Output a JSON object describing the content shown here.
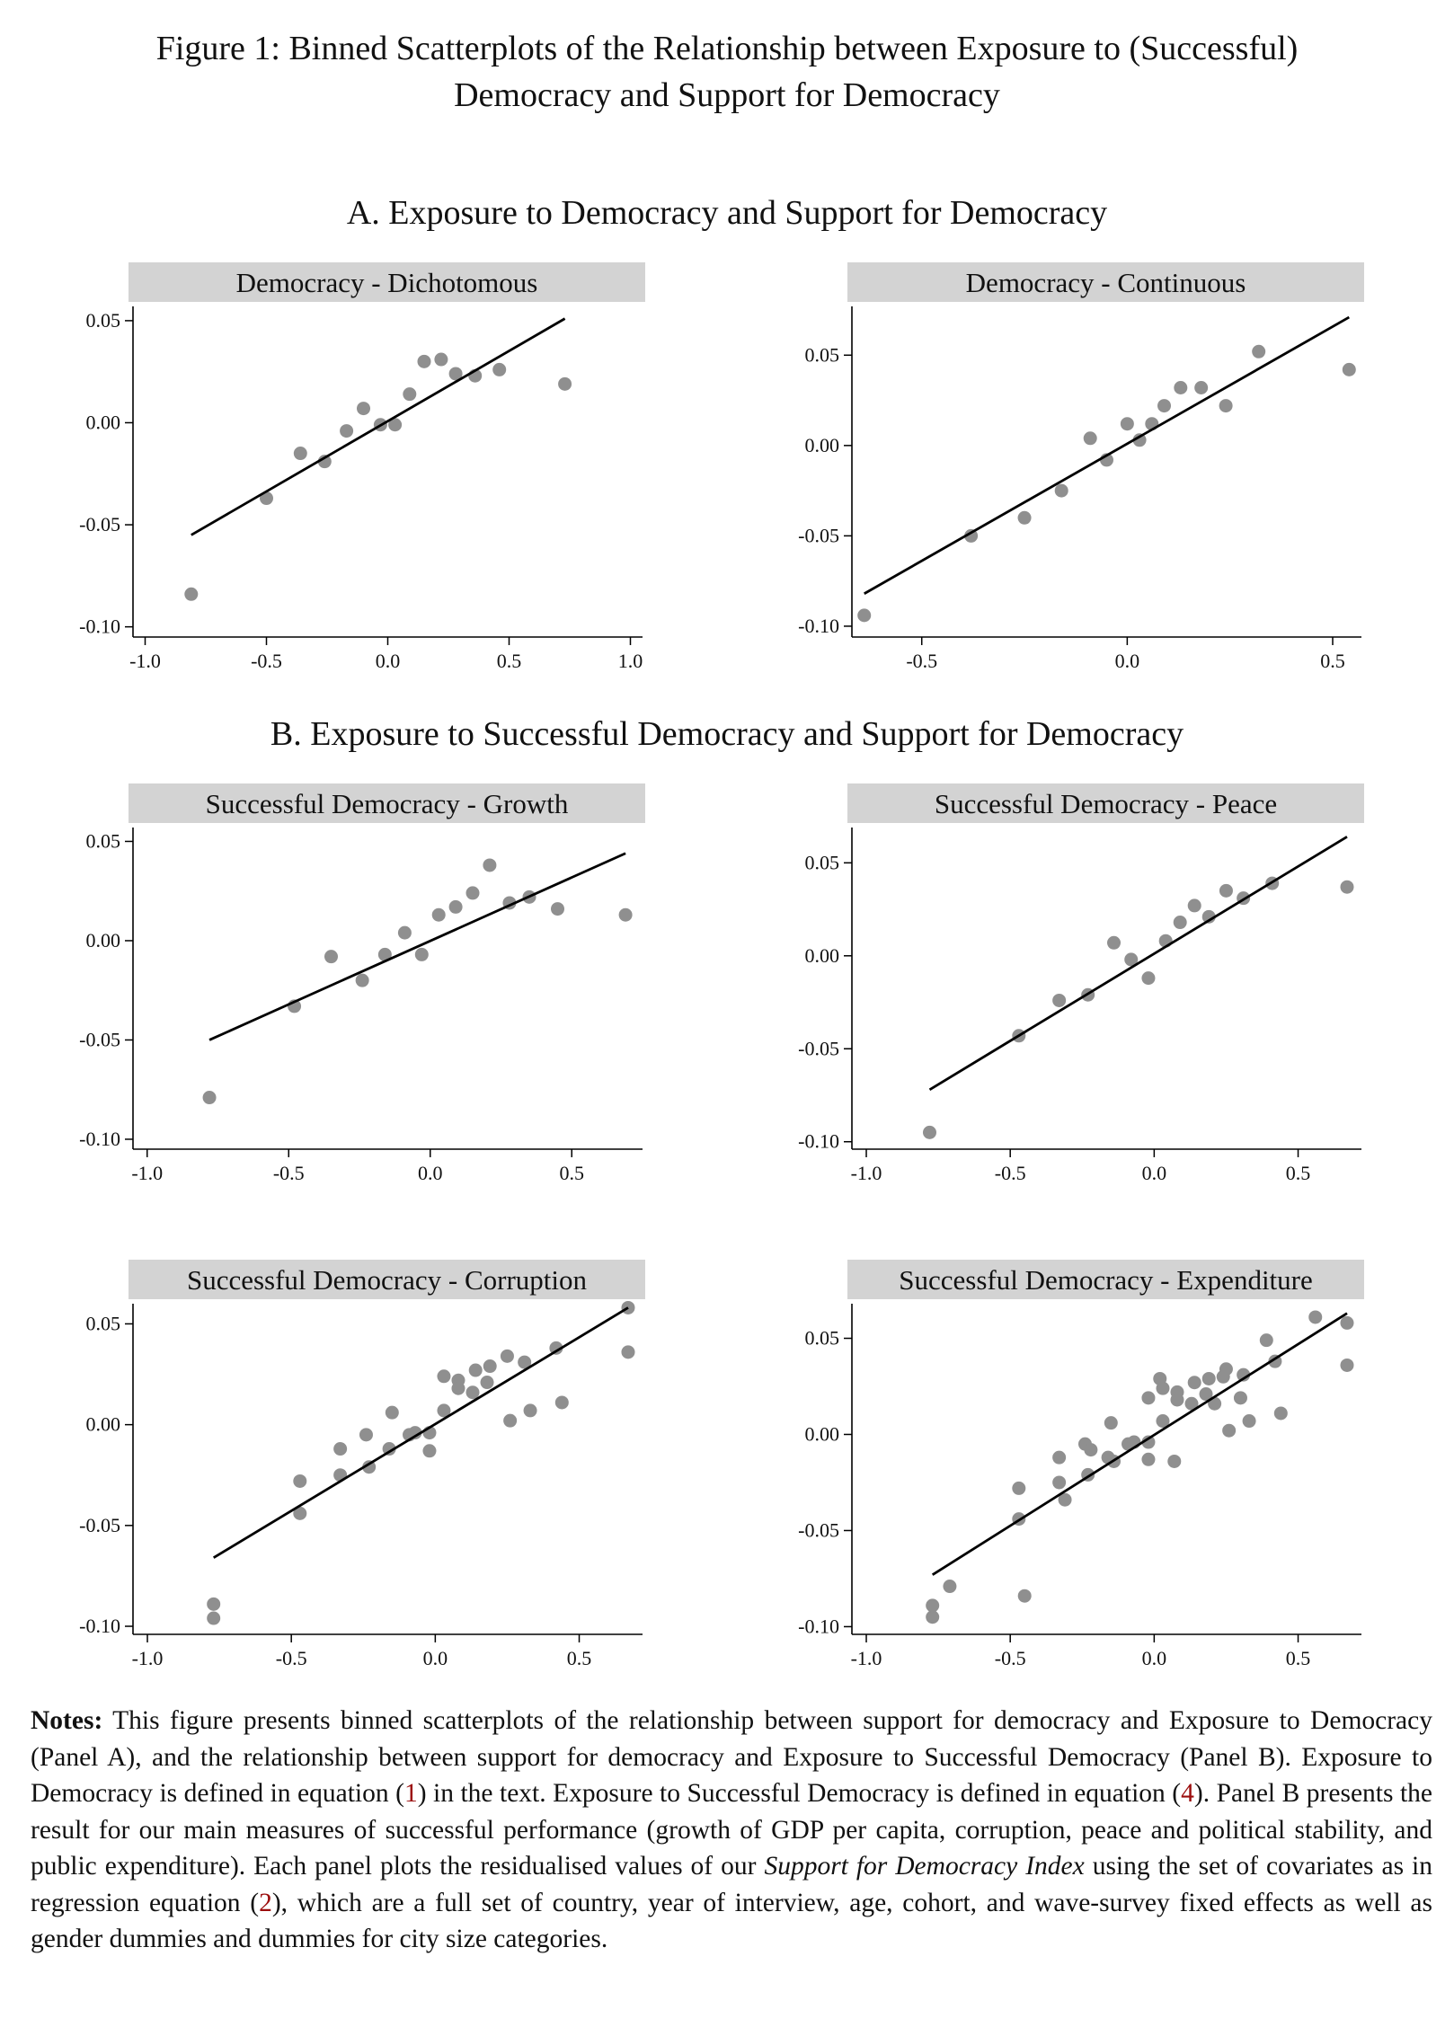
{
  "figure_title": {
    "line1": "Figure 1: Binned Scatterplots of the Relationship between Exposure to (Successful)",
    "line2": "Democracy and Support for Democracy"
  },
  "panel_a_heading": "A. Exposure to Democracy and Support for Democracy",
  "panel_b_heading": "B. Exposure to Successful Democracy and Support for Democracy",
  "colors": {
    "points": "#8f8f8f",
    "line": "#000000",
    "strip_bg": "#d3d3d3",
    "reference_link": "#9b0d0d"
  },
  "chart_data": [
    {
      "type": "scatter",
      "title": "Democracy - Dichotomous",
      "xlim": [
        -1.05,
        1.05
      ],
      "ylim": [
        -0.105,
        0.057
      ],
      "xticks": [
        -1.0,
        -0.5,
        0.0,
        0.5,
        1.0
      ],
      "xtick_labels": [
        "-1.0",
        "-0.5",
        "0.0",
        "0.5",
        "1.0"
      ],
      "yticks": [
        -0.1,
        -0.05,
        0.0,
        0.05
      ],
      "ytick_labels": [
        "-0.10",
        "-0.05",
        "0.00",
        "0.05"
      ],
      "points": [
        [
          -0.81,
          -0.084
        ],
        [
          -0.5,
          -0.037
        ],
        [
          -0.36,
          -0.015
        ],
        [
          -0.26,
          -0.019
        ],
        [
          -0.17,
          -0.004
        ],
        [
          -0.1,
          0.007
        ],
        [
          -0.03,
          -0.001
        ],
        [
          0.03,
          -0.001
        ],
        [
          0.09,
          0.014
        ],
        [
          0.15,
          0.03
        ],
        [
          0.22,
          0.031
        ],
        [
          0.28,
          0.024
        ],
        [
          0.36,
          0.023
        ],
        [
          0.46,
          0.026
        ],
        [
          0.73,
          0.019
        ]
      ],
      "fit_line": [
        [
          -0.81,
          -0.055
        ],
        [
          0.73,
          0.051
        ]
      ]
    },
    {
      "type": "scatter",
      "title": "Democracy - Continuous",
      "xlim": [
        -0.67,
        0.57
      ],
      "ylim": [
        -0.106,
        0.077
      ],
      "xticks": [
        -0.5,
        0.0,
        0.5
      ],
      "xtick_labels": [
        "-0.5",
        "0.0",
        "0.5"
      ],
      "yticks": [
        -0.1,
        -0.05,
        0.0,
        0.05
      ],
      "ytick_labels": [
        "-0.10",
        "-0.05",
        "0.00",
        "0.05"
      ],
      "points": [
        [
          -0.64,
          -0.094
        ],
        [
          -0.38,
          -0.05
        ],
        [
          -0.25,
          -0.04
        ],
        [
          -0.16,
          -0.025
        ],
        [
          -0.09,
          0.004
        ],
        [
          -0.05,
          -0.008
        ],
        [
          0.0,
          0.012
        ],
        [
          0.03,
          0.003
        ],
        [
          0.06,
          0.012
        ],
        [
          0.09,
          0.022
        ],
        [
          0.13,
          0.032
        ],
        [
          0.18,
          0.032
        ],
        [
          0.24,
          0.022
        ],
        [
          0.32,
          0.052
        ],
        [
          0.54,
          0.042
        ]
      ],
      "fit_line": [
        [
          -0.64,
          -0.082
        ],
        [
          0.54,
          0.071
        ]
      ]
    },
    {
      "type": "scatter",
      "title": "Successful Democracy - Growth",
      "xlim": [
        -1.05,
        0.75
      ],
      "ylim": [
        -0.105,
        0.057
      ],
      "xticks": [
        -1.0,
        -0.5,
        0.0,
        0.5
      ],
      "xtick_labels": [
        "-1.0",
        "-0.5",
        "0.0",
        "0.5"
      ],
      "yticks": [
        -0.1,
        -0.05,
        0.0,
        0.05
      ],
      "ytick_labels": [
        "-0.10",
        "-0.05",
        "0.00",
        "0.05"
      ],
      "points": [
        [
          -0.78,
          -0.079
        ],
        [
          -0.48,
          -0.033
        ],
        [
          -0.35,
          -0.008
        ],
        [
          -0.24,
          -0.02
        ],
        [
          -0.16,
          -0.007
        ],
        [
          -0.09,
          0.004
        ],
        [
          -0.03,
          -0.007
        ],
        [
          0.03,
          0.013
        ],
        [
          0.09,
          0.017
        ],
        [
          0.15,
          0.024
        ],
        [
          0.21,
          0.038
        ],
        [
          0.28,
          0.019
        ],
        [
          0.35,
          0.022
        ],
        [
          0.45,
          0.016
        ],
        [
          0.69,
          0.013
        ]
      ],
      "fit_line": [
        [
          -0.78,
          -0.05
        ],
        [
          0.69,
          0.044
        ]
      ]
    },
    {
      "type": "scatter",
      "title": "Successful Democracy - Peace",
      "xlim": [
        -1.05,
        0.72
      ],
      "ylim": [
        -0.104,
        0.069
      ],
      "xticks": [
        -1.0,
        -0.5,
        0.0,
        0.5
      ],
      "xtick_labels": [
        "-1.0",
        "-0.5",
        "0.0",
        "0.5"
      ],
      "yticks": [
        -0.1,
        -0.05,
        0.0,
        0.05
      ],
      "ytick_labels": [
        "-0.10",
        "-0.05",
        "0.00",
        "0.05"
      ],
      "points": [
        [
          -0.78,
          -0.095
        ],
        [
          -0.47,
          -0.043
        ],
        [
          -0.33,
          -0.024
        ],
        [
          -0.23,
          -0.021
        ],
        [
          -0.14,
          0.007
        ],
        [
          -0.08,
          -0.002
        ],
        [
          -0.02,
          -0.012
        ],
        [
          0.04,
          0.008
        ],
        [
          0.09,
          0.018
        ],
        [
          0.14,
          0.027
        ],
        [
          0.19,
          0.021
        ],
        [
          0.25,
          0.035
        ],
        [
          0.31,
          0.031
        ],
        [
          0.41,
          0.039
        ],
        [
          0.67,
          0.037
        ]
      ],
      "fit_line": [
        [
          -0.78,
          -0.072
        ],
        [
          0.67,
          0.064
        ]
      ]
    },
    {
      "type": "scatter",
      "title": "Successful Democracy - Corruption",
      "xlim": [
        -1.05,
        0.72
      ],
      "ylim": [
        -0.104,
        0.06
      ],
      "xticks": [
        -1.0,
        -0.5,
        0.0,
        0.5
      ],
      "xtick_labels": [
        "-1.0",
        "-0.5",
        "0.0",
        "0.5"
      ],
      "yticks": [
        -0.1,
        -0.05,
        0.0,
        0.05
      ],
      "ytick_labels": [
        "-0.10",
        "-0.05",
        "0.00",
        "0.05"
      ],
      "points": [
        [
          -0.77,
          -0.096
        ],
        [
          -0.77,
          -0.089
        ],
        [
          -0.47,
          -0.044
        ],
        [
          -0.47,
          -0.028
        ],
        [
          -0.33,
          -0.025
        ],
        [
          -0.33,
          -0.012
        ],
        [
          -0.24,
          -0.005
        ],
        [
          -0.23,
          -0.021
        ],
        [
          -0.16,
          -0.012
        ],
        [
          -0.15,
          0.006
        ],
        [
          -0.09,
          -0.005
        ],
        [
          -0.07,
          -0.004
        ],
        [
          -0.02,
          -0.004
        ],
        [
          -0.02,
          -0.013
        ],
        [
          0.03,
          0.007
        ],
        [
          0.03,
          0.024
        ],
        [
          0.08,
          0.022
        ],
        [
          0.08,
          0.018
        ],
        [
          0.13,
          0.016
        ],
        [
          0.14,
          0.027
        ],
        [
          0.18,
          0.021
        ],
        [
          0.19,
          0.029
        ],
        [
          0.25,
          0.034
        ],
        [
          0.26,
          0.002
        ],
        [
          0.31,
          0.031
        ],
        [
          0.33,
          0.007
        ],
        [
          0.42,
          0.038
        ],
        [
          0.44,
          0.011
        ],
        [
          0.67,
          0.058
        ],
        [
          0.67,
          0.036
        ]
      ],
      "fit_line": [
        [
          -0.77,
          -0.066
        ],
        [
          0.67,
          0.058
        ]
      ]
    },
    {
      "type": "scatter",
      "title": "Successful Democracy - Expenditure",
      "xlim": [
        -1.05,
        0.72
      ],
      "ylim": [
        -0.104,
        0.068
      ],
      "xticks": [
        -1.0,
        -0.5,
        0.0,
        0.5
      ],
      "xtick_labels": [
        "-1.0",
        "-0.5",
        "0.0",
        "0.5"
      ],
      "yticks": [
        -0.1,
        -0.05,
        0.0,
        0.05
      ],
      "ytick_labels": [
        "-0.10",
        "-0.05",
        "0.00",
        "0.05"
      ],
      "points": [
        [
          -0.77,
          -0.095
        ],
        [
          -0.77,
          -0.089
        ],
        [
          -0.71,
          -0.079
        ],
        [
          -0.47,
          -0.044
        ],
        [
          -0.47,
          -0.028
        ],
        [
          -0.45,
          -0.084
        ],
        [
          -0.33,
          -0.025
        ],
        [
          -0.33,
          -0.012
        ],
        [
          -0.31,
          -0.034
        ],
        [
          -0.24,
          -0.005
        ],
        [
          -0.23,
          -0.021
        ],
        [
          -0.22,
          -0.008
        ],
        [
          -0.16,
          -0.012
        ],
        [
          -0.15,
          0.006
        ],
        [
          -0.14,
          -0.014
        ],
        [
          -0.09,
          -0.005
        ],
        [
          -0.07,
          -0.004
        ],
        [
          -0.02,
          -0.004
        ],
        [
          -0.02,
          -0.013
        ],
        [
          -0.02,
          0.019
        ],
        [
          0.03,
          0.007
        ],
        [
          0.02,
          0.029
        ],
        [
          0.03,
          0.024
        ],
        [
          0.07,
          -0.014
        ],
        [
          0.08,
          0.022
        ],
        [
          0.08,
          0.018
        ],
        [
          0.13,
          0.016
        ],
        [
          0.14,
          0.027
        ],
        [
          0.18,
          0.021
        ],
        [
          0.19,
          0.029
        ],
        [
          0.21,
          0.016
        ],
        [
          0.25,
          0.034
        ],
        [
          0.24,
          0.03
        ],
        [
          0.26,
          0.002
        ],
        [
          0.31,
          0.031
        ],
        [
          0.3,
          0.019
        ],
        [
          0.33,
          0.007
        ],
        [
          0.39,
          0.049
        ],
        [
          0.42,
          0.038
        ],
        [
          0.44,
          0.011
        ],
        [
          0.56,
          0.061
        ],
        [
          0.67,
          0.058
        ],
        [
          0.67,
          0.036
        ]
      ],
      "fit_line": [
        [
          -0.77,
          -0.073
        ],
        [
          0.67,
          0.063
        ]
      ]
    }
  ],
  "notes": {
    "label": "Notes:",
    "part1": " This figure presents binned scatterplots of the relationship between support for democracy and Exposure to Democracy (Panel A), and the relationship between support for democracy and Exposure to Successful Democracy (Panel B). Exposure to Democracy is defined in equation (",
    "ref1": "1",
    "part2": ") in the text. Exposure to Successful Democracy is defined in equation (",
    "ref2": "4",
    "part3": "). Panel B presents the result for our main measures of successful performance (growth of GDP per capita, corruption, peace and political stability, and public expenditure). Each panel plots the residualised values of our ",
    "index_name": "Support for Democracy Index",
    "part4": " using the set of covariates as in regression equation (",
    "ref3": "2",
    "part5": "), which are a full set of country, year of interview, age, cohort, and wave-survey fixed effects as well as gender dummies and dummies for city size categories."
  }
}
